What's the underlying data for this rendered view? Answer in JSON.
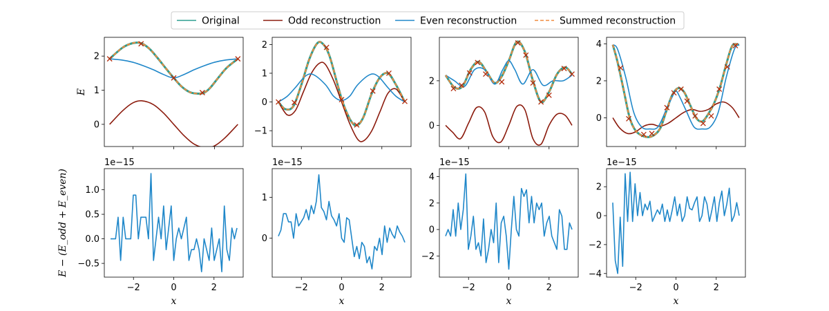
{
  "chart_data": {
    "type": "line",
    "layout": "2x4 grid",
    "legend": {
      "placement": "top-center",
      "entries": [
        {
          "name": "Original",
          "color": "#2a9d8f",
          "style": "solid"
        },
        {
          "name": "Odd reconstruction",
          "color": "#8b1a0c",
          "style": "solid"
        },
        {
          "name": "Even reconstruction",
          "color": "#1f87c9",
          "style": "solid"
        },
        {
          "name": "Summed reconstruction",
          "color": "#f08a3c",
          "style": "dashed"
        }
      ]
    },
    "colors": {
      "original": "#2a9d8f",
      "odd": "#8b1a0c",
      "even": "#1f87c9",
      "summed": "#f08a3c",
      "marker": "#b22a0a"
    },
    "top_row": [
      {
        "ylabel": "E",
        "xlim": [
          -3.4,
          3.4
        ],
        "ylim": [
          -0.65,
          2.55
        ],
        "yticks": [
          "0",
          "1",
          "2"
        ],
        "ytick_values": [
          0,
          1,
          2
        ],
        "original": {
          "x": [
            -3.14,
            -2.5,
            -2.0,
            -1.6,
            -1.2,
            -0.8,
            -0.4,
            0.0,
            0.4,
            0.8,
            1.2,
            1.5,
            1.8,
            2.2,
            2.6,
            3.14
          ],
          "y": [
            1.92,
            2.25,
            2.38,
            2.38,
            2.22,
            1.95,
            1.65,
            1.36,
            1.1,
            0.94,
            0.9,
            0.93,
            1.08,
            1.38,
            1.66,
            1.92
          ]
        },
        "odd": {
          "x": [
            -3.14,
            -2.5,
            -2.0,
            -1.57,
            -1.0,
            -0.5,
            0.0,
            0.5,
            1.0,
            1.57,
            2.0,
            2.5,
            3.14
          ],
          "y": [
            0.0,
            0.4,
            0.63,
            0.69,
            0.58,
            0.33,
            0.0,
            -0.33,
            -0.58,
            -0.69,
            -0.63,
            -0.4,
            0.0
          ]
        },
        "even": {
          "x": [
            -3.14,
            -2.5,
            -2.0,
            -1.5,
            -1.0,
            -0.5,
            0.0,
            0.5,
            1.0,
            1.5,
            2.0,
            2.5,
            3.14
          ],
          "y": [
            1.92,
            1.88,
            1.82,
            1.72,
            1.6,
            1.46,
            1.36,
            1.46,
            1.6,
            1.72,
            1.82,
            1.88,
            1.92
          ]
        },
        "samples": {
          "x": [
            -3.14,
            -1.6,
            0.0,
            1.4,
            3.14
          ],
          "y": [
            1.92,
            2.36,
            1.36,
            0.93,
            1.92
          ]
        }
      },
      {
        "xlim": [
          -3.45,
          3.45
        ],
        "ylim": [
          -1.55,
          2.25
        ],
        "yticks": [
          "−1",
          "0",
          "1",
          "2"
        ],
        "ytick_values": [
          -1,
          0,
          1,
          2
        ],
        "original": {
          "x": [
            -3.14,
            -2.8,
            -2.4,
            -2.0,
            -1.6,
            -1.2,
            -0.9,
            -0.6,
            -0.2,
            0.1,
            0.5,
            0.8,
            1.1,
            1.5,
            1.9,
            2.3,
            2.7,
            3.14
          ],
          "y": [
            0.0,
            -0.25,
            -0.15,
            0.6,
            1.5,
            2.05,
            2.0,
            1.6,
            0.6,
            -0.1,
            -0.7,
            -0.8,
            -0.5,
            0.3,
            0.85,
            1.0,
            0.6,
            0.0
          ]
        },
        "odd": {
          "x": [
            -3.14,
            -2.7,
            -2.3,
            -1.9,
            -1.5,
            -1.1,
            -0.8,
            -0.4,
            0.0,
            0.4,
            0.8,
            1.1,
            1.5,
            1.9,
            2.3,
            2.7,
            3.14
          ],
          "y": [
            0.0,
            -0.45,
            -0.3,
            0.35,
            1.0,
            1.35,
            1.3,
            0.75,
            0.0,
            -0.75,
            -1.3,
            -1.35,
            -1.0,
            -0.35,
            0.3,
            0.45,
            0.0
          ]
        },
        "even": {
          "x": [
            -3.14,
            -2.7,
            -2.3,
            -1.8,
            -1.4,
            -0.8,
            -0.4,
            0.0,
            0.4,
            0.8,
            1.4,
            1.8,
            2.3,
            2.7,
            3.14
          ],
          "y": [
            0.0,
            0.2,
            0.5,
            0.9,
            0.95,
            0.6,
            0.2,
            0.05,
            0.2,
            0.6,
            0.95,
            0.9,
            0.5,
            0.2,
            0.0
          ]
        },
        "samples": {
          "x": [
            -3.14,
            -2.35,
            -0.75,
            0.0,
            0.75,
            1.55,
            2.35,
            3.14
          ],
          "y": [
            0.0,
            -0.02,
            1.9,
            0.08,
            -0.8,
            0.38,
            1.0,
            0.02
          ]
        }
      },
      {
        "xlim": [
          -3.45,
          3.45
        ],
        "ylim": [
          -0.95,
          3.95
        ],
        "yticks": [
          "0",
          "2"
        ],
        "ytick_values": [
          0,
          2
        ],
        "original": {
          "x": [
            -3.14,
            -2.7,
            -2.3,
            -1.9,
            -1.5,
            -1.1,
            -0.7,
            -0.35,
            0.0,
            0.4,
            0.8,
            1.2,
            1.6,
            2.0,
            2.4,
            2.8,
            3.14
          ],
          "y": [
            2.25,
            1.7,
            1.75,
            2.5,
            2.85,
            2.4,
            1.9,
            2.2,
            2.9,
            3.75,
            3.3,
            2.0,
            1.05,
            1.5,
            2.3,
            2.6,
            2.3
          ]
        },
        "odd": {
          "x": [
            -3.14,
            -2.8,
            -2.4,
            -2.0,
            -1.6,
            -1.2,
            -0.8,
            -0.4,
            0.0,
            0.4,
            0.8,
            1.2,
            1.6,
            2.0,
            2.4,
            2.8,
            3.14
          ],
          "y": [
            0.0,
            -0.3,
            -0.6,
            0.1,
            0.8,
            0.6,
            -0.5,
            -0.75,
            0.0,
            0.85,
            0.7,
            -0.6,
            -0.85,
            0.0,
            0.5,
            0.45,
            0.0
          ]
        },
        "even": {
          "x": [
            -3.14,
            -2.7,
            -2.2,
            -1.7,
            -1.2,
            -0.7,
            -0.3,
            0.0,
            0.3,
            0.7,
            1.2,
            1.7,
            2.2,
            2.7,
            3.14
          ],
          "y": [
            2.25,
            2.0,
            1.75,
            2.5,
            2.5,
            1.85,
            2.5,
            2.9,
            2.5,
            1.85,
            2.5,
            1.8,
            2.0,
            2.0,
            2.25
          ]
        },
        "samples": {
          "x": [
            -2.75,
            -2.35,
            -1.95,
            -1.55,
            -1.15,
            -0.35,
            0.45,
            0.85,
            1.2,
            1.6,
            2.0,
            2.75,
            3.14
          ],
          "y": [
            1.65,
            1.8,
            2.35,
            2.82,
            2.3,
            1.95,
            3.7,
            3.15,
            1.9,
            1.05,
            1.35,
            2.55,
            2.3
          ]
        }
      },
      {
        "xlim": [
          -3.45,
          3.45
        ],
        "ylim": [
          -1.55,
          4.35
        ],
        "yticks": [
          "0",
          "2",
          "4"
        ],
        "ytick_values": [
          0,
          2,
          4
        ],
        "original": {
          "x": [
            -3.14,
            -2.9,
            -2.6,
            -2.3,
            -2.0,
            -1.6,
            -1.2,
            -0.8,
            -0.5,
            -0.2,
            0.1,
            0.4,
            0.7,
            1.0,
            1.3,
            1.6,
            1.9,
            2.2,
            2.5,
            2.8,
            3.14
          ],
          "y": [
            3.95,
            3.0,
            1.5,
            0.0,
            -0.7,
            -1.0,
            -1.0,
            -0.6,
            0.3,
            1.2,
            1.6,
            1.4,
            0.7,
            0.0,
            -0.2,
            0.2,
            0.8,
            1.7,
            2.9,
            3.9,
            3.95
          ]
        },
        "odd": {
          "x": [
            -3.14,
            -2.8,
            -2.4,
            -2.0,
            -1.6,
            -1.2,
            -0.8,
            -0.4,
            0.0,
            0.4,
            0.8,
            1.2,
            1.6,
            2.0,
            2.4,
            2.8,
            3.14
          ],
          "y": [
            0.0,
            -0.55,
            -0.85,
            -0.75,
            -0.45,
            -0.35,
            -0.45,
            -0.3,
            0.0,
            0.3,
            0.45,
            0.35,
            0.45,
            0.75,
            0.85,
            0.55,
            0.0
          ]
        },
        "even": {
          "x": [
            -3.14,
            -2.9,
            -2.5,
            -2.1,
            -1.7,
            -1.3,
            -0.9,
            -0.5,
            -0.2,
            0.0,
            0.2,
            0.5,
            0.9,
            1.3,
            1.7,
            2.1,
            2.5,
            2.9,
            3.14
          ],
          "y": [
            3.95,
            3.7,
            2.2,
            0.3,
            -0.5,
            -0.6,
            -0.5,
            0.4,
            1.1,
            1.45,
            1.1,
            0.4,
            -0.5,
            -0.6,
            -0.5,
            0.3,
            2.2,
            3.7,
            3.95
          ]
        },
        "samples": {
          "x": [
            -2.75,
            -2.35,
            -1.6,
            -1.2,
            -0.45,
            -0.1,
            0.25,
            0.55,
            0.95,
            1.35,
            1.75,
            2.15,
            2.55,
            2.95
          ],
          "y": [
            2.7,
            -0.05,
            -0.9,
            -0.85,
            0.55,
            1.35,
            1.55,
            0.9,
            0.1,
            -0.3,
            0.1,
            1.55,
            2.75,
            3.9
          ]
        }
      }
    ],
    "bottom_row": [
      {
        "ylabel": "E − (E_odd + E_even)",
        "xlabel": "x",
        "multiplier": "1e−15",
        "xlim": [
          -3.45,
          3.45
        ],
        "ylim": [
          -0.78,
          1.43
        ],
        "yticks": [
          "−0.5",
          "0.0",
          "0.5",
          "1.0"
        ],
        "ytick_values": [
          -0.5,
          0.0,
          0.5,
          1.0
        ],
        "residual": [
          0.0,
          0.0,
          0.0,
          0.44,
          -0.44,
          0.44,
          0.0,
          0.0,
          0.0,
          0.89,
          0.89,
          0.0,
          0.44,
          0.44,
          0.44,
          0.0,
          1.33,
          -0.44,
          0.0,
          0.44,
          0.0,
          0.67,
          -0.22,
          0.22,
          0.67,
          -0.44,
          0.0,
          0.22,
          0.0,
          0.22,
          0.44,
          -0.44,
          -0.22,
          -0.22,
          0.0,
          -0.22,
          -0.67,
          0.0,
          -0.22,
          -0.44,
          0.22,
          -0.44,
          -0.22,
          0.0,
          -0.67,
          0.67,
          -0.22,
          -0.44,
          0.22,
          0.0,
          0.22
        ]
      },
      {
        "xlabel": "x",
        "multiplier": "1e−15",
        "xlim": [
          -3.45,
          3.45
        ],
        "ylim": [
          -0.95,
          1.7
        ],
        "yticks": [
          "0",
          "1"
        ],
        "ytick_values": [
          0,
          1
        ],
        "residual": [
          0.05,
          0.2,
          0.6,
          0.6,
          0.4,
          0.4,
          0.0,
          0.6,
          0.3,
          0.4,
          0.5,
          0.7,
          0.45,
          0.8,
          0.6,
          0.9,
          1.55,
          0.75,
          0.65,
          0.45,
          0.9,
          0.55,
          0.45,
          0.3,
          0.6,
          0.0,
          -0.1,
          0.5,
          0.45,
          0.0,
          -0.45,
          -0.2,
          -0.5,
          -0.1,
          -0.2,
          -0.6,
          -0.45,
          -0.75,
          -0.2,
          -0.3,
          0.0,
          -0.4,
          0.3,
          -0.1,
          0.25,
          0.1,
          0.0,
          0.3,
          0.15,
          0.05,
          -0.1
        ]
      },
      {
        "xlabel": "x",
        "multiplier": "1e−15",
        "xlim": [
          -3.45,
          3.45
        ],
        "ylim": [
          -3.6,
          4.6
        ],
        "yticks": [
          "−2",
          "0",
          "2",
          "4"
        ],
        "ytick_values": [
          -2,
          0,
          2,
          4
        ],
        "residual": [
          -0.5,
          0.0,
          -0.5,
          1.5,
          -0.5,
          2.0,
          0.0,
          1.5,
          4.2,
          -1.5,
          -0.5,
          1.0,
          -1.5,
          -1.0,
          -2.0,
          0.8,
          -2.5,
          -1.5,
          0.0,
          -1.0,
          2.0,
          -2.5,
          0.5,
          1.0,
          -0.5,
          -3.0,
          0.0,
          2.5,
          0.0,
          -0.5,
          3.1,
          2.5,
          3.0,
          0.5,
          2.5,
          0.5,
          2.0,
          1.5,
          2.0,
          -0.5,
          0.5,
          1.0,
          -0.5,
          -1.0,
          -1.5,
          1.5,
          1.0,
          -1.5,
          -1.5,
          0.5,
          0.0
        ]
      },
      {
        "xlabel": "x",
        "multiplier": "1e−15",
        "xlim": [
          -3.45,
          3.45
        ],
        "ylim": [
          -4.25,
          3.25
        ],
        "yticks": [
          "−4",
          "−2",
          "0",
          "2"
        ],
        "ytick_values": [
          -4,
          -2,
          0,
          2
        ],
        "residual": [
          0.9,
          -3.1,
          -4.0,
          -0.1,
          -3.5,
          2.9,
          -0.4,
          3.0,
          -0.4,
          2.2,
          0.0,
          1.6,
          0.0,
          0.8,
          0.4,
          1.0,
          -0.4,
          0.0,
          0.4,
          0.1,
          0.8,
          -0.4,
          0.4,
          -0.4,
          0.4,
          1.3,
          0.0,
          0.8,
          -0.4,
          0.0,
          1.3,
          0.5,
          0.4,
          0.9,
          1.3,
          -0.4,
          0.0,
          1.3,
          0.8,
          -0.4,
          0.4,
          1.3,
          -0.4,
          0.9,
          1.7,
          0.0,
          0.8,
          1.9,
          -0.4,
          0.0,
          0.9,
          0.0
        ]
      }
    ],
    "xticks": [
      "−2",
      "0",
      "2"
    ],
    "xtick_values": [
      -2,
      0,
      2
    ]
  }
}
